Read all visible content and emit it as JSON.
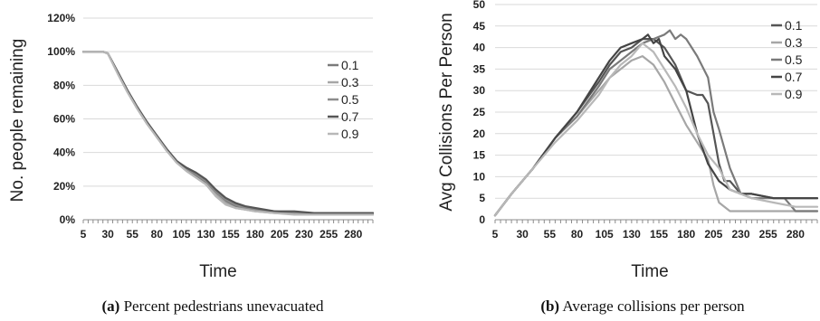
{
  "chart_data": [
    {
      "type": "line",
      "caption_letter": "(a)",
      "caption_text": " Percent pedestrians unevacuated",
      "ylabel": "No. people remaining",
      "xlabel": "Time",
      "ylim": [
        0,
        120
      ],
      "yticks": [
        "0%",
        "20%",
        "40%",
        "60%",
        "80%",
        "100%",
        "120%"
      ],
      "xlim": [
        5,
        300
      ],
      "xticks": [
        "5",
        "30",
        "55",
        "80",
        "105",
        "130",
        "155",
        "180",
        "205",
        "230",
        "255",
        "280"
      ],
      "legend_position": "right",
      "series": [
        {
          "name": "0.1",
          "color": "#7a7a7a",
          "x": [
            5,
            25,
            30,
            40,
            50,
            60,
            70,
            80,
            90,
            100,
            110,
            120,
            130,
            140,
            150,
            160,
            170,
            180,
            200,
            220,
            240,
            260,
            280,
            300
          ],
          "y": [
            100,
            100,
            99,
            88,
            77,
            67,
            58,
            50,
            42,
            35,
            30,
            26,
            22,
            16,
            11,
            8,
            7,
            6,
            5,
            4,
            4,
            4,
            4,
            4
          ]
        },
        {
          "name": "0.3",
          "color": "#a6a6a6",
          "x": [
            5,
            25,
            30,
            40,
            50,
            60,
            70,
            80,
            90,
            100,
            110,
            120,
            130,
            140,
            150,
            160,
            170,
            180,
            200,
            220,
            240,
            260,
            280,
            300
          ],
          "y": [
            100,
            100,
            99,
            87,
            76,
            66,
            57,
            49,
            41,
            34,
            29,
            25,
            21,
            15,
            10,
            7,
            6,
            5,
            4,
            4,
            3,
            3,
            3,
            3
          ]
        },
        {
          "name": "0.5",
          "color": "#8c8c8c",
          "x": [
            5,
            25,
            30,
            40,
            50,
            60,
            70,
            80,
            90,
            100,
            110,
            120,
            130,
            140,
            150,
            160,
            170,
            180,
            200,
            220,
            240,
            260,
            280,
            300
          ],
          "y": [
            100,
            100,
            99,
            88,
            77,
            67,
            58,
            49,
            42,
            35,
            30,
            27,
            23,
            17,
            12,
            9,
            7,
            6,
            5,
            4,
            4,
            4,
            4,
            4
          ]
        },
        {
          "name": "0.7",
          "color": "#555555",
          "x": [
            5,
            25,
            30,
            40,
            50,
            60,
            70,
            80,
            90,
            100,
            110,
            120,
            130,
            140,
            150,
            160,
            170,
            180,
            200,
            220,
            240,
            260,
            280,
            300
          ],
          "y": [
            100,
            100,
            99,
            88,
            77,
            67,
            58,
            50,
            42,
            35,
            31,
            28,
            24,
            18,
            13,
            10,
            8,
            7,
            5,
            5,
            4,
            4,
            4,
            4
          ]
        },
        {
          "name": "0.9",
          "color": "#b8b8b8",
          "x": [
            5,
            25,
            30,
            40,
            50,
            60,
            70,
            80,
            90,
            100,
            110,
            120,
            130,
            140,
            150,
            160,
            170,
            180,
            200,
            220,
            240,
            260,
            280,
            300
          ],
          "y": [
            100,
            100,
            99,
            87,
            76,
            66,
            57,
            49,
            41,
            34,
            29,
            25,
            21,
            14,
            9,
            7,
            6,
            5,
            4,
            3,
            3,
            3,
            3,
            3
          ]
        }
      ]
    },
    {
      "type": "line",
      "caption_letter": "(b)",
      "caption_text": " Average collisions per person",
      "ylabel": "Avg Collisions Per Person",
      "xlabel": "Time",
      "ylim": [
        0,
        50
      ],
      "yticks": [
        "0",
        "5",
        "10",
        "15",
        "20",
        "25",
        "30",
        "35",
        "40",
        "45",
        "50"
      ],
      "xlim": [
        5,
        300
      ],
      "xticks": [
        "5",
        "30",
        "55",
        "80",
        "105",
        "130",
        "155",
        "180",
        "205",
        "230",
        "255",
        "280"
      ],
      "legend_position": "top-right",
      "series": [
        {
          "name": "0.1",
          "color": "#555555",
          "x": [
            5,
            20,
            40,
            60,
            80,
            100,
            110,
            120,
            130,
            140,
            150,
            160,
            170,
            180,
            190,
            195,
            200,
            205,
            210,
            215,
            220,
            230,
            240,
            260,
            280,
            300
          ],
          "y": [
            1,
            6,
            12,
            19,
            25,
            32,
            36,
            39,
            40,
            42,
            42,
            40,
            36,
            30,
            29,
            29,
            27,
            20,
            13,
            9,
            9,
            6,
            6,
            5,
            5,
            5
          ]
        },
        {
          "name": "0.3",
          "color": "#a6a6a6",
          "x": [
            5,
            20,
            40,
            60,
            80,
            100,
            110,
            120,
            130,
            140,
            150,
            160,
            170,
            180,
            190,
            200,
            205,
            210,
            220,
            230,
            240,
            260,
            280,
            300
          ],
          "y": [
            1,
            6,
            12,
            19,
            24,
            30,
            33,
            35,
            37,
            38,
            36,
            32,
            27,
            22,
            18,
            14,
            8,
            4,
            2,
            2,
            2,
            2,
            2,
            2
          ]
        },
        {
          "name": "0.5",
          "color": "#7a7a7a",
          "x": [
            5,
            20,
            40,
            60,
            80,
            100,
            110,
            120,
            130,
            140,
            150,
            160,
            165,
            170,
            175,
            180,
            190,
            200,
            205,
            210,
            220,
            230,
            240,
            260,
            270,
            280,
            300
          ],
          "y": [
            1,
            6,
            12,
            19,
            24,
            31,
            35,
            37,
            39,
            41,
            42,
            43,
            44,
            42,
            43,
            42,
            38,
            33,
            25,
            21,
            12,
            6,
            5,
            5,
            5,
            2,
            2
          ]
        },
        {
          "name": "0.7",
          "color": "#444444",
          "x": [
            5,
            20,
            40,
            60,
            80,
            100,
            110,
            120,
            130,
            140,
            145,
            150,
            155,
            160,
            170,
            180,
            190,
            200,
            210,
            215,
            220,
            230,
            240,
            260,
            280,
            300
          ],
          "y": [
            1,
            6,
            12,
            19,
            25,
            33,
            37,
            40,
            41,
            42,
            43,
            41,
            42,
            38,
            35,
            30,
            20,
            13,
            9,
            8,
            7,
            6,
            6,
            5,
            5,
            5
          ]
        },
        {
          "name": "0.9",
          "color": "#b8b8b8",
          "x": [
            5,
            20,
            40,
            60,
            80,
            100,
            110,
            120,
            130,
            140,
            150,
            160,
            170,
            180,
            190,
            200,
            210,
            220,
            230,
            240,
            260,
            280,
            300
          ],
          "y": [
            1,
            6,
            12,
            18,
            23,
            29,
            33,
            36,
            38,
            41,
            39,
            35,
            31,
            26,
            20,
            15,
            12,
            7,
            6,
            5,
            4,
            3,
            3
          ]
        }
      ]
    }
  ]
}
